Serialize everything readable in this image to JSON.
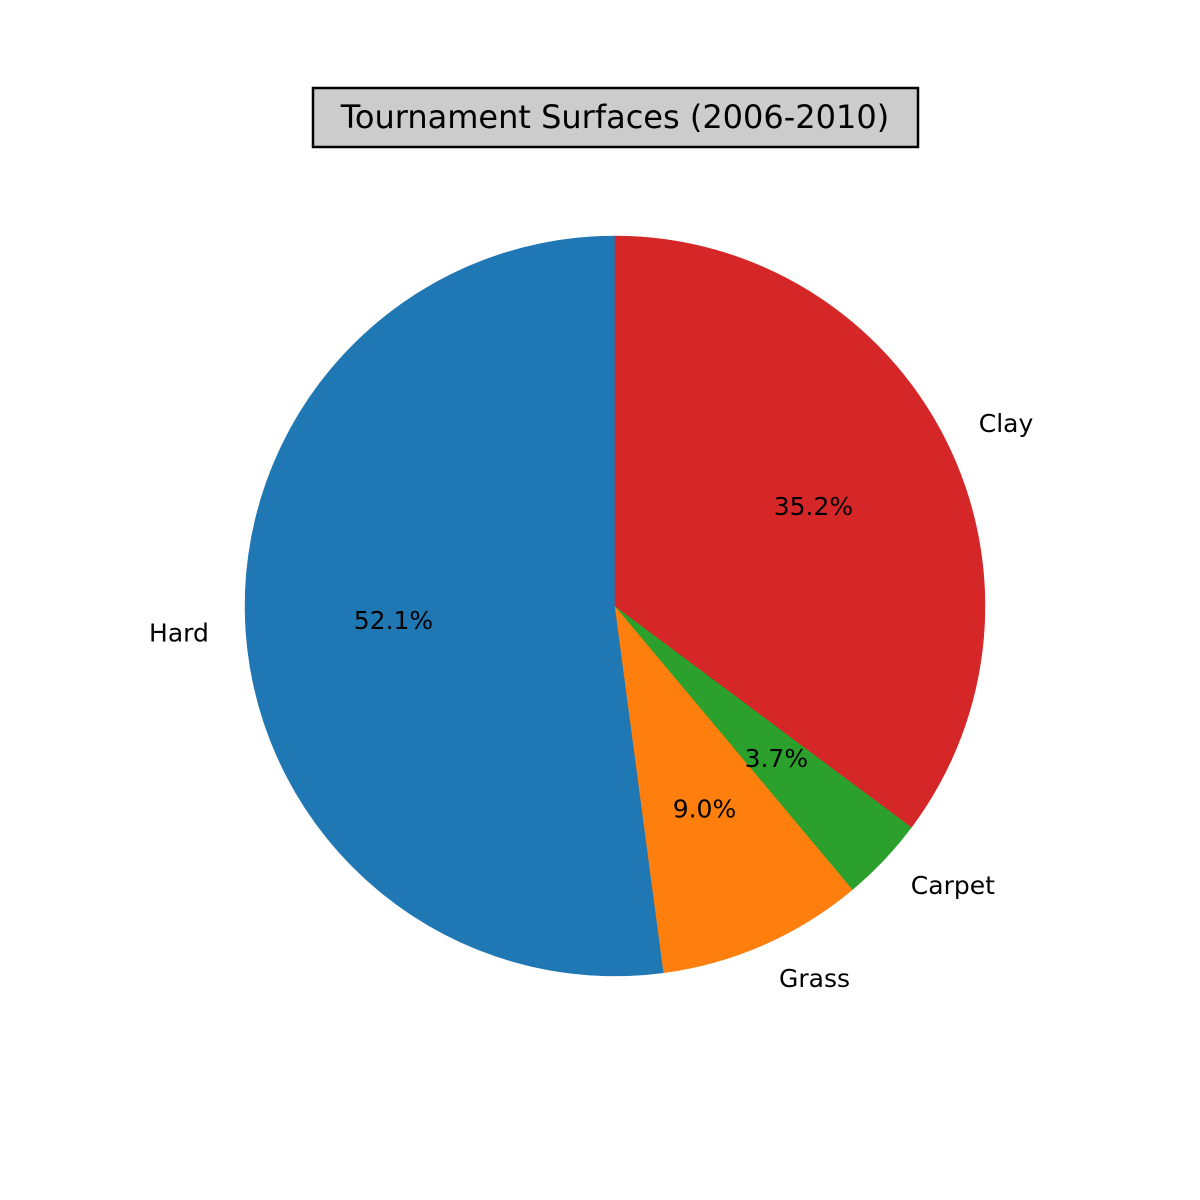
{
  "chart_data": {
    "type": "pie",
    "title": "Tournament Surfaces (2006-2010)",
    "start_angle_deg": 90,
    "direction": "counterclockwise",
    "slices": [
      {
        "label": "Hard",
        "value": 52.1,
        "pct_label": "52.1%",
        "color": "#1f77b4"
      },
      {
        "label": "Grass",
        "value": 9.0,
        "pct_label": "9.0%",
        "color": "#ff7f0e"
      },
      {
        "label": "Carpet",
        "value": 3.7,
        "pct_label": "3.7%",
        "color": "#2ca02c"
      },
      {
        "label": "Clay",
        "value": 35.2,
        "pct_label": "35.2%",
        "color": "#d62728"
      }
    ],
    "title_box_color": "#cccccc"
  }
}
